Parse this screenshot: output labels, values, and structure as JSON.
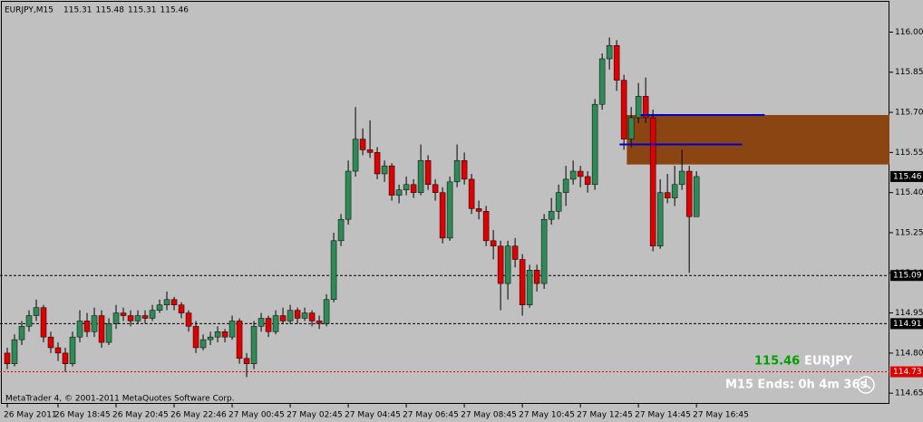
{
  "chart_data": {
    "type": "candlestick",
    "title": "EURJPY,M15",
    "header_values": [
      115.31,
      115.48,
      115.31,
      115.46
    ],
    "up_color": "#2e8b57",
    "down_color": "#e00000",
    "wick_color": "#000000",
    "xlim": [
      -1,
      121.6
    ],
    "ylim": [
      114.61,
      116.12
    ],
    "yticks": [
      {
        "value": 116.0,
        "label": "116.00"
      },
      {
        "value": 115.85,
        "label": "115.85"
      },
      {
        "value": 115.7,
        "label": "115.70"
      },
      {
        "value": 115.55,
        "label": "115.55"
      },
      {
        "value": 115.4,
        "label": "115.40"
      },
      {
        "value": 115.25,
        "label": "115.25"
      },
      {
        "value": 115.1,
        "label": "115.10"
      },
      {
        "value": 114.95,
        "label": "114.95"
      },
      {
        "value": 114.8,
        "label": "114.80"
      },
      {
        "value": 114.65,
        "label": "114.65"
      }
    ],
    "xticks": [
      {
        "value": 0,
        "label": "26 May 2011"
      },
      {
        "value": 7,
        "label": "26 May 18:45"
      },
      {
        "value": 15,
        "label": "26 May 20:45"
      },
      {
        "value": 23,
        "label": "26 May 22:46"
      },
      {
        "value": 31,
        "label": "27 May 00:45"
      },
      {
        "value": 39,
        "label": "27 May 02:45"
      },
      {
        "value": 47,
        "label": "27 May 04:45"
      },
      {
        "value": 55,
        "label": "27 May 06:45"
      },
      {
        "value": 63,
        "label": "27 May 08:45"
      },
      {
        "value": 71,
        "label": "27 May 10:45"
      },
      {
        "value": 79,
        "label": "27 May 12:45"
      },
      {
        "value": 87,
        "label": "27 May 14:45"
      },
      {
        "value": 95,
        "label": "27 May 16:45"
      }
    ],
    "ohlc": [
      [
        114.8,
        114.82,
        114.74,
        114.76
      ],
      [
        114.76,
        114.87,
        114.75,
        114.85
      ],
      [
        114.85,
        114.92,
        114.83,
        114.9
      ],
      [
        114.9,
        114.96,
        114.88,
        114.94
      ],
      [
        114.94,
        115.0,
        114.92,
        114.97
      ],
      [
        114.97,
        114.98,
        114.84,
        114.86
      ],
      [
        114.86,
        114.88,
        114.8,
        114.82
      ],
      [
        114.82,
        114.84,
        114.77,
        114.8
      ],
      [
        114.8,
        114.82,
        114.73,
        114.76
      ],
      [
        114.76,
        114.88,
        114.75,
        114.86
      ],
      [
        114.86,
        114.96,
        114.84,
        114.92
      ],
      [
        114.92,
        114.95,
        114.86,
        114.88
      ],
      [
        114.88,
        114.97,
        114.86,
        114.94
      ],
      [
        114.94,
        114.96,
        114.82,
        114.84
      ],
      [
        114.84,
        114.93,
        114.83,
        114.91
      ],
      [
        114.91,
        114.98,
        114.89,
        114.95
      ],
      [
        114.95,
        114.97,
        114.92,
        114.94
      ],
      [
        114.94,
        114.96,
        114.9,
        114.92
      ],
      [
        114.92,
        114.96,
        114.91,
        114.94
      ],
      [
        114.94,
        114.96,
        114.91,
        114.93
      ],
      [
        114.93,
        114.98,
        114.92,
        114.96
      ],
      [
        114.96,
        115.0,
        114.95,
        114.98
      ],
      [
        114.98,
        115.03,
        114.96,
        115.0
      ],
      [
        115.0,
        115.01,
        114.96,
        114.98
      ],
      [
        114.98,
        114.99,
        114.93,
        114.95
      ],
      [
        114.95,
        114.96,
        114.88,
        114.9
      ],
      [
        114.9,
        114.92,
        114.8,
        114.82
      ],
      [
        114.82,
        114.87,
        114.81,
        114.85
      ],
      [
        114.85,
        114.88,
        114.83,
        114.86
      ],
      [
        114.86,
        114.9,
        114.84,
        114.88
      ],
      [
        114.88,
        114.89,
        114.84,
        114.86
      ],
      [
        114.86,
        114.94,
        114.85,
        114.92
      ],
      [
        114.92,
        114.93,
        114.76,
        114.78
      ],
      [
        114.78,
        114.8,
        114.71,
        114.76
      ],
      [
        114.76,
        114.92,
        114.74,
        114.9
      ],
      [
        114.9,
        114.95,
        114.88,
        114.93
      ],
      [
        114.93,
        114.94,
        114.86,
        114.88
      ],
      [
        114.88,
        114.96,
        114.87,
        114.94
      ],
      [
        114.94,
        114.97,
        114.91,
        114.92
      ],
      [
        114.92,
        114.98,
        114.91,
        114.96
      ],
      [
        114.96,
        114.97,
        114.91,
        114.93
      ],
      [
        114.93,
        114.97,
        114.92,
        114.95
      ],
      [
        114.95,
        114.96,
        114.9,
        114.92
      ],
      [
        114.92,
        114.94,
        114.89,
        114.91
      ],
      [
        114.91,
        115.02,
        114.9,
        115.0
      ],
      [
        115.0,
        115.25,
        114.99,
        115.22
      ],
      [
        115.22,
        115.32,
        115.2,
        115.3
      ],
      [
        115.3,
        115.52,
        115.28,
        115.48
      ],
      [
        115.48,
        115.72,
        115.46,
        115.6
      ],
      [
        115.6,
        115.64,
        115.54,
        115.56
      ],
      [
        115.56,
        115.67,
        115.53,
        115.55
      ],
      [
        115.55,
        115.57,
        115.45,
        115.47
      ],
      [
        115.47,
        115.52,
        115.44,
        115.5
      ],
      [
        115.5,
        115.51,
        115.37,
        115.39
      ],
      [
        115.39,
        115.43,
        115.36,
        115.41
      ],
      [
        115.41,
        115.46,
        115.39,
        115.43
      ],
      [
        115.43,
        115.45,
        115.38,
        115.4
      ],
      [
        115.4,
        115.58,
        115.39,
        115.52
      ],
      [
        115.52,
        115.54,
        115.41,
        115.43
      ],
      [
        115.43,
        115.45,
        115.37,
        115.4
      ],
      [
        115.4,
        115.42,
        115.21,
        115.23
      ],
      [
        115.23,
        115.46,
        115.22,
        115.44
      ],
      [
        115.44,
        115.58,
        115.42,
        115.52
      ],
      [
        115.52,
        115.55,
        115.43,
        115.45
      ],
      [
        115.45,
        115.47,
        115.32,
        115.34
      ],
      [
        115.34,
        115.37,
        115.3,
        115.33
      ],
      [
        115.33,
        115.35,
        115.2,
        115.22
      ],
      [
        115.22,
        115.26,
        115.15,
        115.2
      ],
      [
        115.2,
        115.22,
        114.96,
        115.06
      ],
      [
        115.06,
        115.22,
        115.0,
        115.2
      ],
      [
        115.2,
        115.23,
        115.12,
        115.15
      ],
      [
        115.15,
        115.17,
        114.94,
        114.98
      ],
      [
        114.98,
        115.13,
        114.97,
        115.11
      ],
      [
        115.11,
        115.13,
        115.03,
        115.06
      ],
      [
        115.06,
        115.32,
        115.04,
        115.3
      ],
      [
        115.3,
        115.38,
        115.28,
        115.33
      ],
      [
        115.33,
        115.43,
        115.3,
        115.4
      ],
      [
        115.4,
        115.5,
        115.35,
        115.45
      ],
      [
        115.45,
        115.52,
        115.43,
        115.48
      ],
      [
        115.48,
        115.5,
        115.42,
        115.46
      ],
      [
        115.46,
        115.48,
        115.4,
        115.43
      ],
      [
        115.43,
        115.75,
        115.41,
        115.73
      ],
      [
        115.73,
        115.92,
        115.71,
        115.9
      ],
      [
        115.9,
        115.98,
        115.86,
        115.95
      ],
      [
        115.95,
        115.97,
        115.78,
        115.82
      ],
      [
        115.82,
        115.84,
        115.56,
        115.6
      ],
      [
        115.6,
        115.72,
        115.57,
        115.68
      ],
      [
        115.68,
        115.81,
        115.66,
        115.76
      ],
      [
        115.76,
        115.83,
        115.66,
        115.68
      ],
      [
        115.68,
        115.71,
        115.18,
        115.2
      ],
      [
        115.2,
        115.45,
        115.19,
        115.4
      ],
      [
        115.4,
        115.47,
        115.36,
        115.38
      ],
      [
        115.38,
        115.5,
        115.35,
        115.43
      ],
      [
        115.43,
        115.56,
        115.41,
        115.48
      ],
      [
        115.48,
        115.5,
        115.1,
        115.31
      ],
      [
        115.31,
        115.48,
        115.31,
        115.46
      ]
    ],
    "zones": [
      {
        "top": 115.69,
        "bottom": 115.505,
        "from": 85.4,
        "color": "#8b4513"
      }
    ],
    "trend_lines": [
      {
        "value": 115.69,
        "from": 87.3,
        "to": 104.4,
        "color": "#0000cc"
      },
      {
        "value": 115.58,
        "from": 84.4,
        "to": 101.3,
        "color": "#0000cc"
      }
    ],
    "price_lines": [
      {
        "value": 115.09,
        "color": "#000000",
        "label_bg": "#000000"
      },
      {
        "value": 114.91,
        "color": "#000000",
        "label_bg": "#000000"
      },
      {
        "value": 114.73,
        "color": "#e00000",
        "label_bg": "#e00000"
      }
    ],
    "current_price": 115.46,
    "info": {
      "price": 115.46,
      "symbol": "EURJPY",
      "timer": "M15 Ends: 0h 4m 36s"
    },
    "copyright": "MetaTrader 4, © 2001-2011 MetaQuotes Software Corp."
  }
}
